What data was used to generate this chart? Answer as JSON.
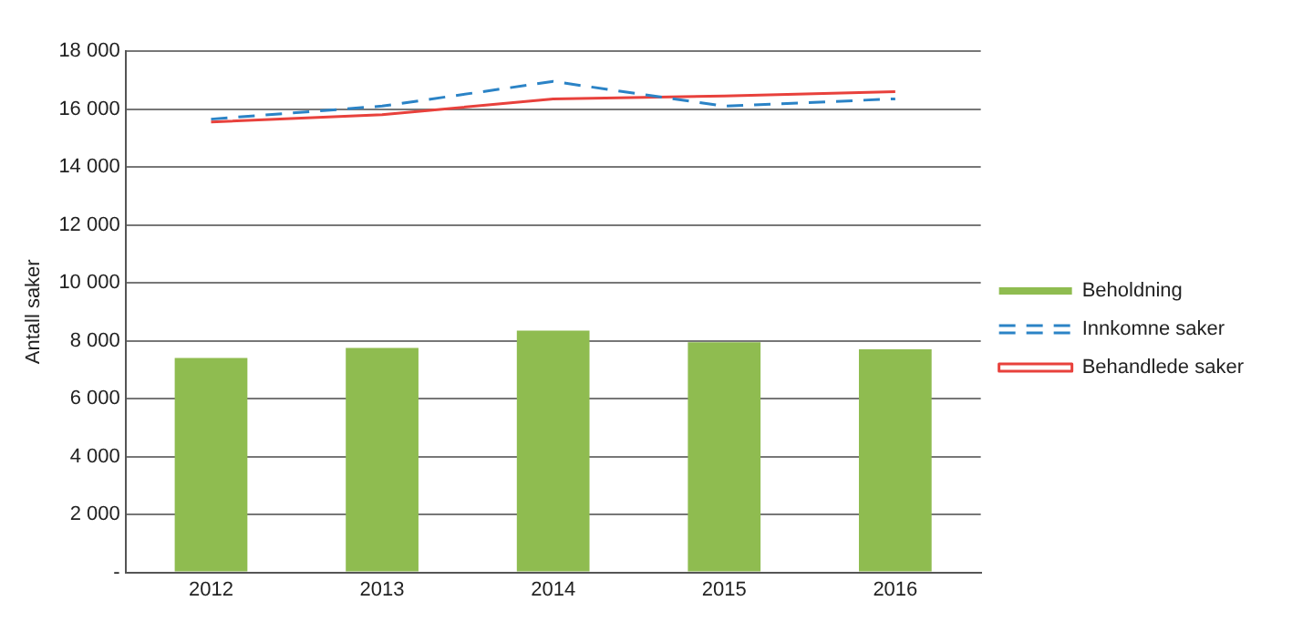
{
  "chart_data": {
    "type": "bar",
    "ylabel": "Antall saker",
    "categories": [
      "2012",
      "2013",
      "2014",
      "2015",
      "2016"
    ],
    "series": [
      {
        "name": "Beholdning",
        "color": "#8fbc50",
        "values": [
          7400,
          7750,
          8350,
          7950,
          7700
        ]
      },
      {
        "name": "Innkomne saker",
        "type": "line",
        "color": "#2b83c6",
        "line_style": "dashed",
        "values": [
          15650,
          16100,
          16950,
          16100,
          16350
        ]
      },
      {
        "name": "Behandlede saker",
        "type": "line",
        "color": "#e8413c",
        "line_style": "solid",
        "values": [
          15550,
          15800,
          16350,
          16450,
          16600
        ]
      }
    ],
    "ylim": [
      0,
      18000
    ],
    "yticks": [
      {
        "value": 0,
        "label": "-"
      },
      {
        "value": 2000,
        "label": "2 000"
      },
      {
        "value": 4000,
        "label": "4 000"
      },
      {
        "value": 6000,
        "label": "6 000"
      },
      {
        "value": 8000,
        "label": "8 000"
      },
      {
        "value": 10000,
        "label": "10 000"
      },
      {
        "value": 12000,
        "label": "12 000"
      },
      {
        "value": 14000,
        "label": "14 000"
      },
      {
        "value": 16000,
        "label": "16 000"
      },
      {
        "value": 18000,
        "label": "18 000"
      }
    ],
    "grid": "y",
    "legend": "right",
    "marker": "none"
  }
}
